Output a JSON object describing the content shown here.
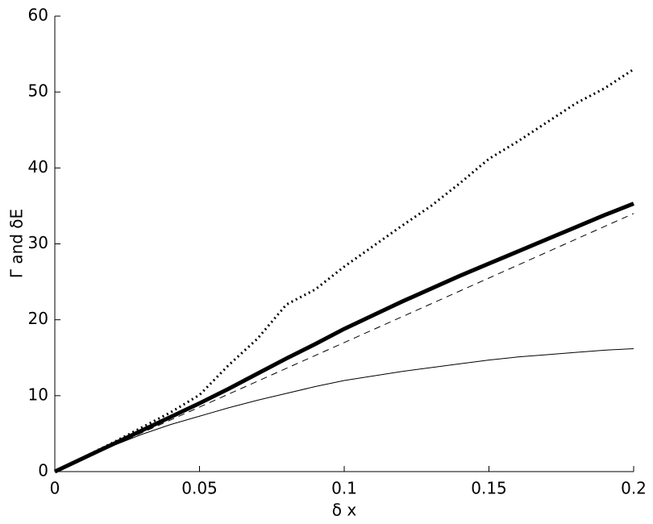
{
  "chart_data": {
    "type": "line",
    "xlabel": "δ x",
    "ylabel": "Γ and δE",
    "x": [
      0,
      0.01,
      0.02,
      0.03,
      0.04,
      0.05,
      0.06,
      0.07,
      0.08,
      0.09,
      0.1,
      0.11,
      0.12,
      0.13,
      0.14,
      0.15,
      0.16,
      0.17,
      0.18,
      0.19,
      0.2
    ],
    "series": [
      {
        "color": "#000000",
        "style": "dotted",
        "width": 3,
        "values": [
          0,
          1.9,
          3.8,
          5.8,
          7.8,
          10.1,
          14,
          17.5,
          22,
          24,
          27,
          29.7,
          32.4,
          35,
          38,
          41.2,
          43.5,
          46,
          48.5,
          50.5,
          53
        ]
      },
      {
        "color": "#000000",
        "style": "solid",
        "width": 5,
        "values": [
          0,
          1.8,
          3.6,
          5.4,
          7.2,
          9,
          10.9,
          12.9,
          14.9,
          16.8,
          18.8,
          20.6,
          22.4,
          24.1,
          25.8,
          27.4,
          29,
          30.6,
          32.2,
          33.8,
          35.3
        ]
      },
      {
        "color": "#000000",
        "style": "dashed",
        "width": 1,
        "values": [
          0,
          1.7,
          3.4,
          5.1,
          6.8,
          8.5,
          10.2,
          11.9,
          13.6,
          15.3,
          17,
          18.7,
          20.4,
          22.1,
          23.8,
          25.5,
          27.2,
          28.9,
          30.6,
          32.3,
          34
        ]
      },
      {
        "color": "#000000",
        "style": "solid",
        "width": 1,
        "values": [
          0,
          1.7,
          3.4,
          4.9,
          6.2,
          7.3,
          8.4,
          9.4,
          10.3,
          11.2,
          12,
          12.6,
          13.2,
          13.7,
          14.2,
          14.7,
          15.1,
          15.4,
          15.7,
          16,
          16.2
        ]
      }
    ],
    "xlim": [
      0,
      0.2
    ],
    "xticks": [
      0,
      0.05,
      0.1,
      0.15,
      0.2
    ],
    "ylim": [
      0,
      60
    ],
    "yticks": [
      0,
      10,
      20,
      30,
      40,
      50,
      60
    ],
    "grid": false
  }
}
